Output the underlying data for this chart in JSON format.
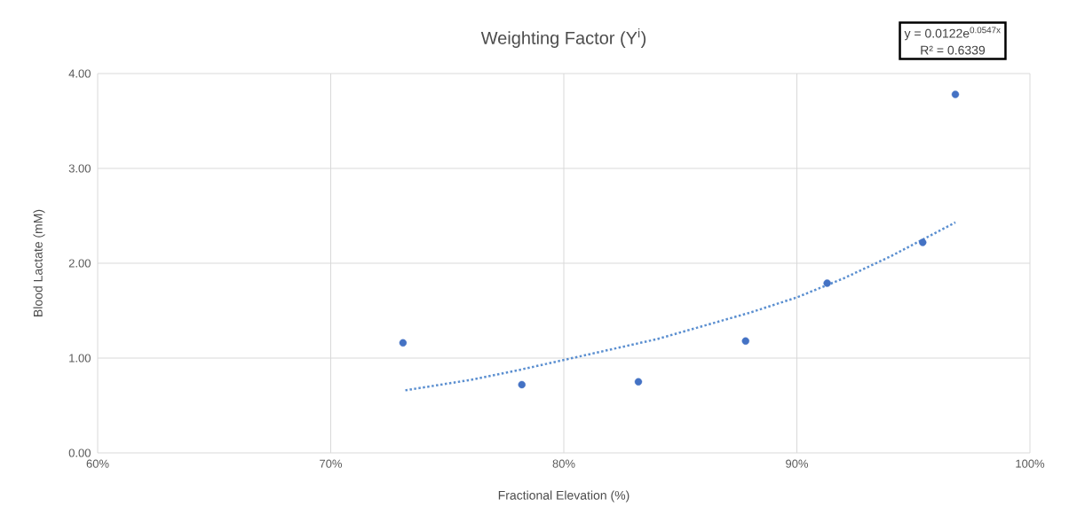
{
  "chart_data": {
    "type": "scatter",
    "title": "Weighting Factor (Y$^{i}$)",
    "xlabel": "Fractional Elevation (%)",
    "ylabel": "Blood Lactate (mM)",
    "annotations": [
      "y = 0.0122e$^{0.0547x}$",
      "R² = 0.6339"
    ],
    "series": [
      {
        "color": "#4472c4",
        "marker": "circle",
        "x": [
          73.1,
          78.2,
          83.2,
          87.8,
          91.3,
          95.4,
          96.8
        ],
        "values": [
          1.16,
          0.72,
          0.75,
          1.18,
          1.79,
          2.22,
          3.78
        ]
      },
      {
        "type": "line",
        "color": "#5b8fd0",
        "marker": "none",
        "line_style": "dotted",
        "x": [
          73.2,
          76,
          78,
          80,
          82,
          84,
          86,
          88,
          90,
          92,
          94,
          96.8
        ],
        "values": [
          0.66,
          0.77,
          0.87,
          0.98,
          1.09,
          1.2,
          1.34,
          1.48,
          1.64,
          1.84,
          2.07,
          2.43
        ]
      }
    ],
    "xlim": [
      60,
      100
    ],
    "ylim": [
      0,
      4
    ],
    "xticks": [
      {
        "value": 60,
        "label": "60%"
      },
      {
        "value": 70,
        "label": "70%"
      },
      {
        "value": 80,
        "label": "80%"
      },
      {
        "value": 90,
        "label": "90%"
      },
      {
        "value": 100,
        "label": "100%"
      }
    ],
    "yticks": [
      {
        "value": 0,
        "label": "0.00"
      },
      {
        "value": 1,
        "label": "1.00"
      },
      {
        "value": 2,
        "label": "2.00"
      },
      {
        "value": 3,
        "label": "3.00"
      },
      {
        "value": 4,
        "label": "4.00"
      }
    ],
    "grid": true
  }
}
